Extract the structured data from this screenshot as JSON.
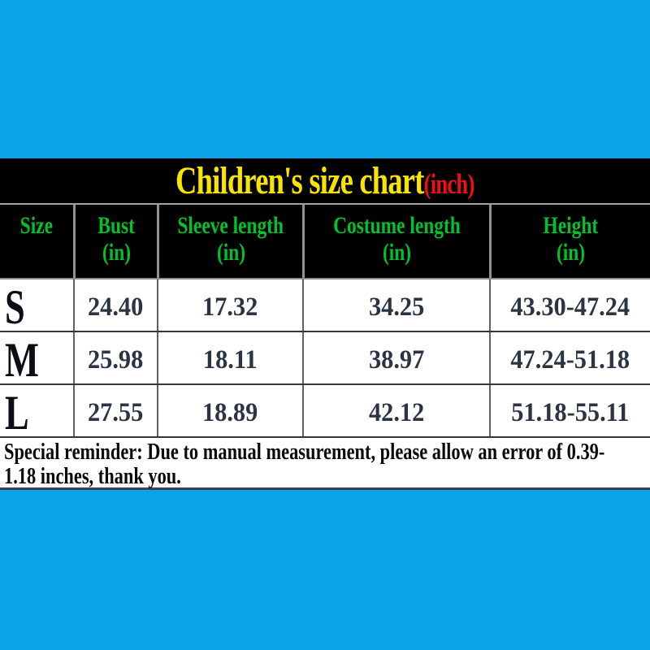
{
  "colors": {
    "background_blue": "#0aa2e9",
    "banner_black": "#000000",
    "title_yellow": "#f8e400",
    "unit_red": "#f01010",
    "header_green": "#00c22b",
    "value_ink": "#2b3442",
    "size_ink": "#0b0e14"
  },
  "title": {
    "text": "Children's size chart",
    "unit": "(inch)"
  },
  "table": {
    "columns": [
      {
        "label": "Size",
        "sub": ""
      },
      {
        "label": "Bust",
        "sub": "(in)"
      },
      {
        "label": "Sleeve length",
        "sub": "(in)"
      },
      {
        "label": "Costume length",
        "sub": "(in)"
      },
      {
        "label": "Height",
        "sub": "(in)"
      }
    ],
    "rows": [
      {
        "size": "S",
        "bust": "24.40",
        "sleeve": "17.32",
        "costume": "34.25",
        "height": "43.30-47.24"
      },
      {
        "size": "M",
        "bust": "25.98",
        "sleeve": "18.11",
        "costume": "38.97",
        "height": "47.24-51.18"
      },
      {
        "size": "L",
        "bust": "27.55",
        "sleeve": "18.89",
        "costume": "42.12",
        "height": "51.18-55.11"
      }
    ]
  },
  "reminder": {
    "lines": [
      "Special reminder: Due to manual measurement, please allow an error of 0.39-",
      "1.18 inches, thank you."
    ]
  },
  "chart_data": {
    "type": "table",
    "title": "Children's size chart (inch)",
    "columns": [
      "Size",
      "Bust (in)",
      "Sleeve length (in)",
      "Costume length (in)",
      "Height (in)"
    ],
    "rows": [
      [
        "S",
        24.4,
        17.32,
        34.25,
        "43.30-47.24"
      ],
      [
        "M",
        25.98,
        18.11,
        38.97,
        "47.24-51.18"
      ],
      [
        "L",
        27.55,
        18.89,
        42.12,
        "51.18-55.11"
      ]
    ],
    "footnote": "Special reminder: Due to manual measurement, please allow an error of 0.39-1.18 inches, thank you."
  }
}
